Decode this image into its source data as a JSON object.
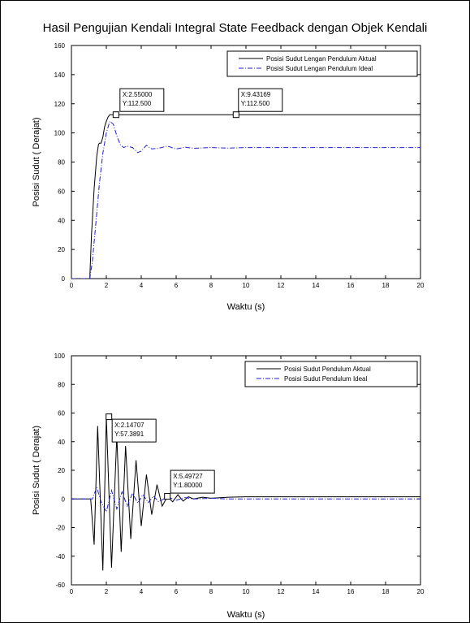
{
  "figure": {
    "title": "Hasil Pengujian Kendali Integral State Feedback dengan Objek Kendali"
  },
  "colors": {
    "actual": "#000000",
    "ideal": "#1f1fcc"
  },
  "chart_data": [
    {
      "type": "line",
      "xlabel": "Waktu (s)",
      "ylabel": "Posisi Sudut ( Derajat)",
      "xlim": [
        0,
        20
      ],
      "ylim": [
        0,
        160
      ],
      "xticks": [
        "0",
        "2",
        "4",
        "6",
        "8",
        "10",
        "12",
        "14",
        "16",
        "18",
        "20"
      ],
      "yticks": [
        "0",
        "20",
        "40",
        "60",
        "80",
        "100",
        "120",
        "140",
        "160"
      ],
      "grid": false,
      "legend": "top-right",
      "series": [
        {
          "name": "Posisi Sudut Lengan Pendulum Aktual",
          "style": "solid",
          "color": "#000000",
          "x": [
            0,
            1.0,
            1.05,
            1.15,
            1.3,
            1.45,
            1.55,
            1.6,
            1.7,
            1.8,
            1.9,
            2.0,
            2.1,
            2.2,
            20
          ],
          "y": [
            0,
            0,
            0,
            30,
            62,
            84,
            92,
            93,
            93,
            97,
            104,
            108,
            111,
            112.5,
            112.5
          ]
        },
        {
          "name": "Posisi Sudut Lengan Pendulum Ideal",
          "style": "dashdot",
          "color": "#1f1fcc",
          "x": [
            0,
            1.0,
            1.05,
            1.2,
            1.4,
            1.6,
            1.8,
            2.0,
            2.2,
            2.4,
            2.6,
            2.8,
            3.0,
            3.2,
            3.5,
            3.8,
            4.0,
            4.3,
            4.6,
            5.0,
            5.5,
            6.0,
            6.5,
            7.0,
            8.0,
            9.0,
            10,
            12,
            14,
            16,
            18,
            20
          ],
          "y": [
            0,
            0,
            0,
            12,
            38,
            65,
            86,
            100,
            108,
            106,
            98,
            92,
            90,
            91,
            90,
            86.5,
            87.5,
            91.5,
            89,
            89.5,
            91,
            89,
            90.2,
            89.5,
            90,
            89.6,
            90,
            90,
            90,
            90,
            90,
            90
          ]
        }
      ],
      "annotations": [
        {
          "x": 2.55,
          "y": 112.5,
          "lines": [
            "X:2.55000",
            "Y:112.500"
          ]
        },
        {
          "x": 9.43169,
          "y": 112.5,
          "lines": [
            "X:9.43169",
            "Y:112.500"
          ]
        }
      ]
    },
    {
      "type": "line",
      "xlabel": "Waktu (s)",
      "ylabel": "Posisi Sudut ( Derajat)",
      "xlim": [
        0,
        20
      ],
      "ylim": [
        -60,
        100
      ],
      "xticks": [
        "0",
        "2",
        "4",
        "6",
        "8",
        "10",
        "12",
        "14",
        "16",
        "18",
        "20"
      ],
      "yticks": [
        "-60",
        "-40",
        "-20",
        "0",
        "20",
        "40",
        "60",
        "80",
        "100"
      ],
      "grid": false,
      "legend": "top-right",
      "series": [
        {
          "name": "Posisi Sudut Pendulum Aktual",
          "style": "solid",
          "color": "#000000",
          "x": [
            0,
            1.0,
            1.1,
            1.3,
            1.5,
            1.8,
            2.0,
            2.3,
            2.6,
            2.85,
            3.1,
            3.4,
            3.7,
            4.0,
            4.3,
            4.6,
            4.9,
            5.2,
            5.5,
            5.8,
            6.1,
            6.4,
            6.7,
            7.0,
            7.5,
            8.0,
            9.0,
            10,
            12,
            14,
            16,
            18,
            20
          ],
          "y": [
            0,
            0,
            0,
            -32,
            51,
            -50,
            57.4,
            -48,
            44,
            -37,
            37,
            -28,
            27,
            -19,
            17,
            -11,
            10,
            -5,
            1.8,
            -2,
            3,
            -1.5,
            1.5,
            0,
            1.2,
            0.5,
            1.2,
            1.5,
            1.5,
            1.5,
            1.5,
            1.5,
            1.5
          ]
        },
        {
          "name": "Posisi Sudut Pendulum Ideal",
          "style": "dashdot",
          "color": "#1f1fcc",
          "x": [
            0,
            1.0,
            1.2,
            1.45,
            1.7,
            2.0,
            2.3,
            2.6,
            2.9,
            3.2,
            3.5,
            3.8,
            4.1,
            4.4,
            4.7,
            5.0,
            5.5,
            6.0,
            6.5,
            7.0,
            8.0,
            9.0,
            10,
            12,
            14,
            16,
            18,
            20
          ],
          "y": [
            0,
            0,
            0,
            8,
            -2,
            -9,
            6,
            -7,
            5,
            -5,
            4,
            -3,
            3,
            -2.5,
            2,
            -2,
            1.5,
            -1,
            1,
            0,
            0.5,
            0,
            0,
            0,
            0,
            0,
            0,
            0
          ]
        }
      ],
      "annotations": [
        {
          "x": 2.14707,
          "y": 57.3891,
          "lines": [
            "X:2.14707",
            "Y:57.3891"
          ]
        },
        {
          "x": 5.49727,
          "y": 1.8,
          "lines": [
            "X:5.49727",
            "Y:1.80000"
          ]
        }
      ]
    }
  ]
}
